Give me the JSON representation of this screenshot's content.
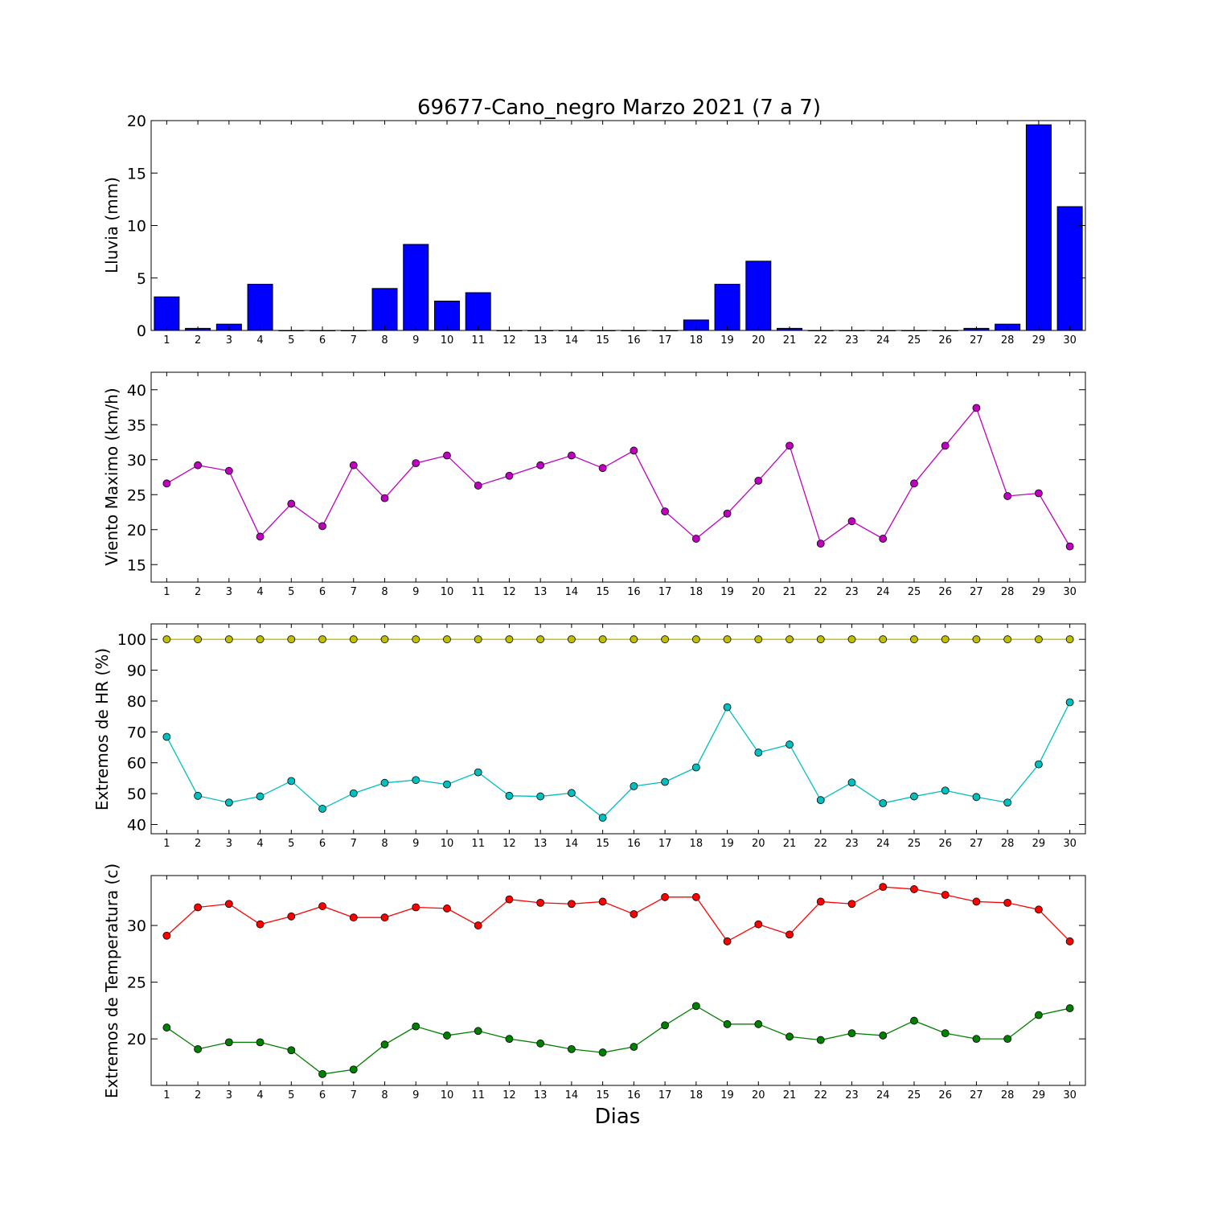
{
  "chart_data": [
    {
      "type": "bar",
      "title": "69677-Cano_negro Marzo 2021  (7 a 7)",
      "ylabel": "Lluvia (mm)",
      "xlabel": "",
      "categories": [
        "1",
        "2",
        "3",
        "4",
        "5",
        "6",
        "7",
        "8",
        "9",
        "10",
        "11",
        "12",
        "13",
        "14",
        "15",
        "16",
        "17",
        "18",
        "19",
        "20",
        "21",
        "22",
        "23",
        "24",
        "25",
        "26",
        "27",
        "28",
        "29",
        "30"
      ],
      "ylim": [
        0,
        20
      ],
      "yticks": [
        0,
        5,
        10,
        15,
        20
      ],
      "color": "#0000ff",
      "series": [
        {
          "values": [
            3.2,
            0.2,
            0.6,
            4.4,
            0,
            0,
            0,
            4.0,
            8.2,
            2.8,
            3.6,
            0,
            0,
            0,
            0,
            0,
            0,
            1.0,
            4.4,
            6.6,
            0.2,
            0,
            0,
            0,
            0,
            0,
            0.2,
            0.6,
            19.6,
            11.8
          ]
        }
      ]
    },
    {
      "type": "line",
      "ylabel": "Viento Maximo (km/h)",
      "xlabel": "",
      "categories": [
        "1",
        "2",
        "3",
        "4",
        "5",
        "6",
        "7",
        "8",
        "9",
        "10",
        "11",
        "12",
        "13",
        "14",
        "15",
        "16",
        "17",
        "18",
        "19",
        "20",
        "21",
        "22",
        "23",
        "24",
        "25",
        "26",
        "27",
        "28",
        "29",
        "30"
      ],
      "ylim": [
        12.5,
        42.5
      ],
      "yticks": [
        15,
        20,
        25,
        30,
        35,
        40
      ],
      "series": [
        {
          "color": "#bf00bf",
          "values": [
            26.6,
            29.2,
            28.4,
            19.0,
            23.7,
            20.5,
            29.2,
            24.5,
            29.5,
            30.6,
            26.3,
            27.7,
            29.2,
            30.6,
            28.8,
            31.3,
            22.6,
            18.7,
            22.3,
            27.0,
            32.0,
            18.0,
            21.2,
            18.7,
            26.6,
            32.0,
            37.4,
            24.8,
            25.2,
            17.6
          ]
        }
      ]
    },
    {
      "type": "line",
      "ylabel": "Extremos de HR (%)",
      "xlabel": "",
      "categories": [
        "1",
        "2",
        "3",
        "4",
        "5",
        "6",
        "7",
        "8",
        "9",
        "10",
        "11",
        "12",
        "13",
        "14",
        "15",
        "16",
        "17",
        "18",
        "19",
        "20",
        "21",
        "22",
        "23",
        "24",
        "25",
        "26",
        "27",
        "28",
        "29",
        "30"
      ],
      "ylim": [
        37,
        105
      ],
      "yticks": [
        40,
        50,
        60,
        70,
        80,
        90,
        100
      ],
      "series": [
        {
          "color": "#bfbf00",
          "values": [
            100,
            100,
            100,
            100,
            100,
            100,
            100,
            100,
            100,
            100,
            100,
            100,
            100,
            100,
            100,
            100,
            100,
            100,
            100,
            100,
            100,
            100,
            100,
            100,
            100,
            100,
            100,
            100,
            100,
            100
          ]
        },
        {
          "color": "#00bfbf",
          "values": [
            68.4,
            49.3,
            47.1,
            49.1,
            54.1,
            45.1,
            50.1,
            53.5,
            54.4,
            53.0,
            56.9,
            49.3,
            49.1,
            50.2,
            42.2,
            52.4,
            53.8,
            58.5,
            78.0,
            63.3,
            65.9,
            47.9,
            53.6,
            46.9,
            49.1,
            51.0,
            48.9,
            47.1,
            59.5,
            79.6
          ]
        }
      ]
    },
    {
      "type": "line",
      "ylabel": "Extremos de Temperatura (c)",
      "xlabel": "Dias",
      "categories": [
        "1",
        "2",
        "3",
        "4",
        "5",
        "6",
        "7",
        "8",
        "9",
        "10",
        "11",
        "12",
        "13",
        "14",
        "15",
        "16",
        "17",
        "18",
        "19",
        "20",
        "21",
        "22",
        "23",
        "24",
        "25",
        "26",
        "27",
        "28",
        "29",
        "30"
      ],
      "ylim": [
        15.9,
        34.4
      ],
      "yticks": [
        20,
        25,
        30
      ],
      "series": [
        {
          "color": "#ff0000",
          "values": [
            29.1,
            31.6,
            31.9,
            30.1,
            30.8,
            31.7,
            30.7,
            30.7,
            31.6,
            31.5,
            30.0,
            32.3,
            32.0,
            31.9,
            32.1,
            31.0,
            32.5,
            32.5,
            28.6,
            30.1,
            29.2,
            32.1,
            31.9,
            33.4,
            33.2,
            32.7,
            32.1,
            32.0,
            31.4,
            28.6
          ]
        },
        {
          "color": "#008000",
          "values": [
            21.0,
            19.1,
            19.7,
            19.7,
            19.0,
            16.9,
            17.3,
            19.5,
            21.1,
            20.3,
            20.7,
            20.0,
            19.6,
            19.1,
            18.8,
            19.3,
            21.2,
            22.9,
            21.3,
            21.3,
            20.2,
            19.9,
            20.5,
            20.3,
            21.6,
            20.5,
            20.0,
            20.0,
            22.1,
            22.7
          ]
        }
      ]
    }
  ]
}
